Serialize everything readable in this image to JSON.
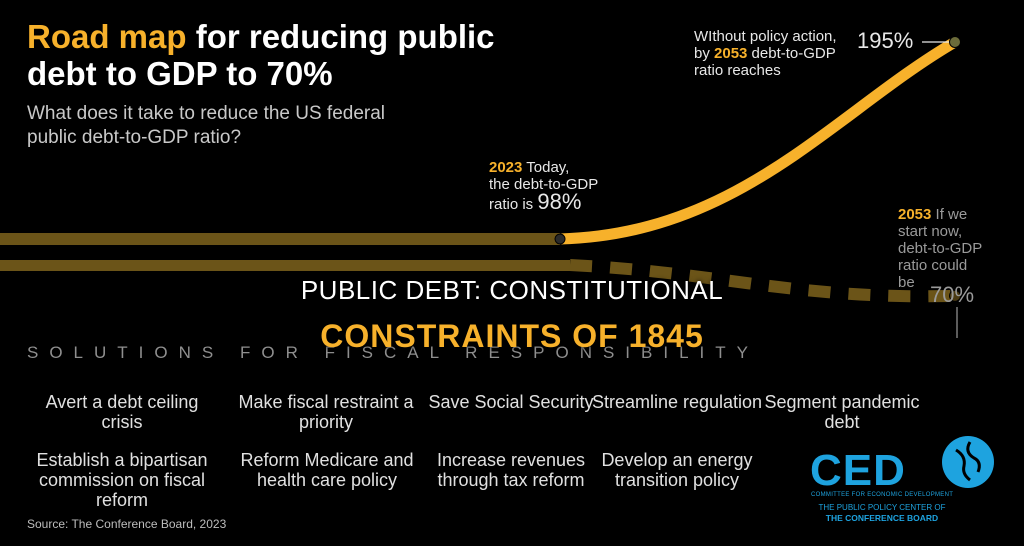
{
  "title": {
    "part1": "Road map",
    "part2": " for reducing public debt to GDP to 70%"
  },
  "subtitle": "What does it take to reduce the US federal public debt-to-GDP ratio?",
  "colors": {
    "accent": "#f7b12b",
    "dark_band": "#6b5418",
    "background": "#000000",
    "logo_blue": "#1ea3df"
  },
  "chart_data": {
    "type": "line",
    "title": "Road map for reducing public debt to GDP to 70%",
    "x": [
      2023,
      2053
    ],
    "series": [
      {
        "values": [
          98,
          195
        ]
      },
      {
        "values": [
          98,
          70
        ]
      }
    ],
    "annotations": [
      {
        "year": "2023",
        "text": "Today, the debt-to-GDP ratio is",
        "value": "98%"
      },
      {
        "prefix": "WIthout policy action, by",
        "year": "2053",
        "text": "debt-to-GDP ratio reaches",
        "value": "195%"
      },
      {
        "year": "2053",
        "text": "If we start now, debt-to-GDP ratio could be",
        "value": "70%"
      }
    ]
  },
  "annotations": {
    "today": {
      "year": "2023",
      "line1": " Today,",
      "line2": "the debt-to-GDP",
      "line3": "ratio is ",
      "value": "98%"
    },
    "no_action": {
      "line1": "WIthout policy action,",
      "by": "by ",
      "year": "2053",
      "line2rest": " debt-to-GDP",
      "line3": "ratio reaches",
      "value": "195%"
    },
    "start_now": {
      "year": "2053",
      "line1": " If we",
      "line2": "start now,",
      "line3": "debt-to-GDP",
      "line4": "ratio could",
      "line5": "be",
      "value": "70%"
    }
  },
  "overlay": {
    "line1": "PUBLIC DEBT: CONSTITUTIONAL",
    "line2": "CONSTRAINTS OF 1845"
  },
  "solutions_header": "SOLUTIONS FOR FISCAL RESPONSIBILITY",
  "solutions": {
    "row1": [
      "Avert a debt ceiling crisis",
      "Make fiscal restraint a priority",
      "Save Social Security",
      "Streamline regulation",
      "Segment pandemic debt"
    ],
    "row2": [
      "Establish a bipartisan commission on fiscal reform",
      "Reform Medicare and health care policy",
      "Increase revenues through tax reform",
      "Develop an energy transition policy"
    ]
  },
  "source": "Source: The Conference Board, 2023",
  "logo": {
    "acronym": "CED",
    "fullname": "COMMITTEE FOR ECONOMIC DEVELOPMENT",
    "center_line1": "THE PUBLIC POLICY CENTER OF",
    "center_line2": "THE CONFERENCE BOARD"
  }
}
